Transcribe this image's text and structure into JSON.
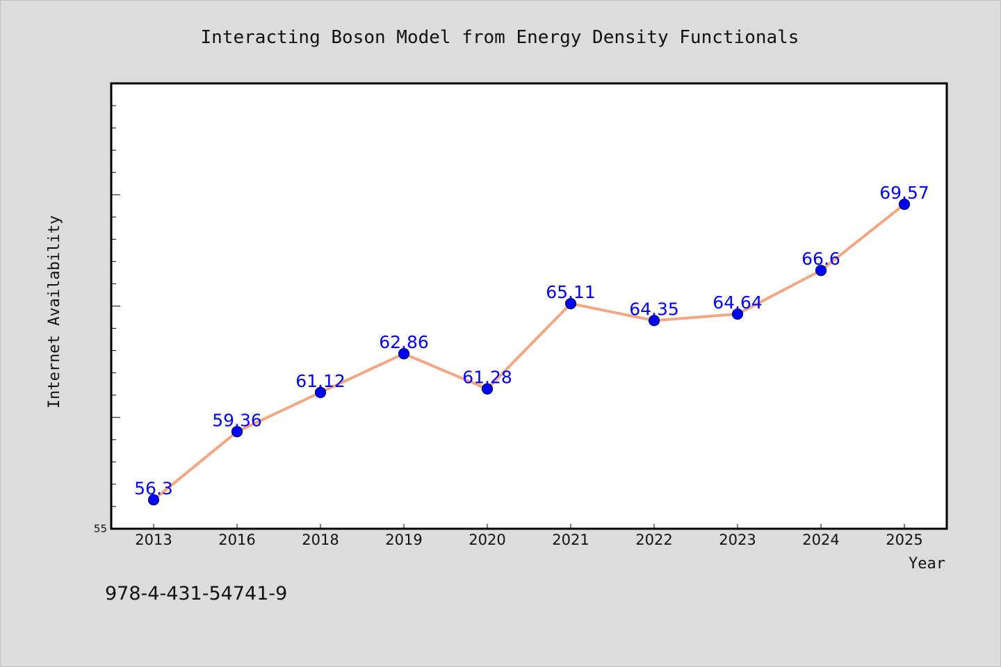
{
  "chart_data": {
    "type": "line",
    "title": "Interacting Boson Model from Energy Density Functionals",
    "xlabel": "Year",
    "ylabel": "Internet Availability",
    "categories": [
      "2013",
      "2016",
      "2018",
      "2019",
      "2020",
      "2021",
      "2022",
      "2023",
      "2024",
      "2025"
    ],
    "series": [
      {
        "values": [
          56.3,
          59.36,
          61.12,
          62.86,
          61.28,
          65.11,
          64.35,
          64.64,
          66.6,
          69.57
        ],
        "data_labels": [
          "56.3",
          "59.36",
          "61.12",
          "62.86",
          "61.28",
          "65.11",
          "64.35",
          "64.64",
          "66.6",
          "69.57"
        ]
      }
    ],
    "ylim": [
      55,
      75
    ],
    "y_tick_labels": [
      {
        "value": 55,
        "label": "55"
      }
    ],
    "y_major_ticks": [
      55,
      60,
      65,
      70,
      75
    ],
    "y_minor_ticks": [
      56,
      57,
      58,
      59,
      61,
      62,
      63,
      64,
      66,
      67,
      68,
      69,
      71,
      72,
      73,
      74
    ],
    "grid": false,
    "legend": "none",
    "colors": {
      "line": "#f4a582",
      "marker": "#0000ff",
      "marker_edge": "#00004a",
      "data_label": "#0000ff",
      "background": "#dcdcdc",
      "plot_area": "#ffffff"
    }
  },
  "footnote": "978-4-431-54741-9"
}
